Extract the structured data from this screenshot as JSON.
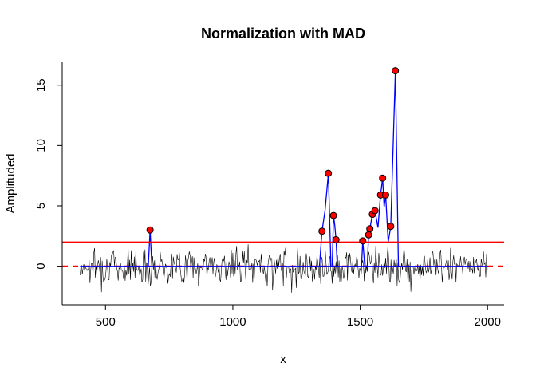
{
  "chart_data": {
    "type": "line",
    "title": "Normalization with MAD",
    "xlabel": "x",
    "ylabel": "Amplituded",
    "xlim": [
      330,
      2065
    ],
    "ylim": [
      -3.2,
      16.9
    ],
    "x_ticks": [
      500,
      1000,
      1500,
      2000
    ],
    "y_ticks": [
      0,
      5,
      10,
      15
    ],
    "grid": false,
    "colors": {
      "signal": "#000000",
      "peaks_line": "#0000ff",
      "threshold": "#ff0000",
      "baseline": "#ff0000",
      "peak_fill": "#ff0000",
      "peak_stroke": "#000000"
    },
    "threshold": 2,
    "baseline": 0,
    "noise": {
      "x_start": 400,
      "x_end": 2000,
      "step": 3,
      "seed": 7,
      "amplitude": 0.75
    },
    "peaks_x_range": [
      400,
      2000
    ],
    "peaks": [
      {
        "x": 675,
        "y": 3.0
      },
      {
        "x": 1350,
        "y": 2.9
      },
      {
        "x": 1375,
        "y": 7.7
      },
      {
        "x": 1395,
        "y": 4.2
      },
      {
        "x": 1405,
        "y": 2.2
      },
      {
        "x": 1510,
        "y": 2.1
      },
      {
        "x": 1533,
        "y": 2.6
      },
      {
        "x": 1538,
        "y": 3.1
      },
      {
        "x": 1548,
        "y": 4.3
      },
      {
        "x": 1558,
        "y": 4.6
      },
      {
        "x": 1580,
        "y": 5.9
      },
      {
        "x": 1588,
        "y": 7.3
      },
      {
        "x": 1600,
        "y": 5.9
      },
      {
        "x": 1620,
        "y": 3.3
      },
      {
        "x": 1638,
        "y": 16.2
      }
    ],
    "blue_segments": [
      [
        [
          668,
          0
        ],
        [
          675,
          3.0
        ],
        [
          682,
          0
        ]
      ],
      [
        [
          1340,
          0
        ],
        [
          1350,
          2.9
        ],
        [
          1362,
          4.6
        ],
        [
          1375,
          7.7
        ],
        [
          1385,
          0
        ]
      ],
      [
        [
          1390,
          0
        ],
        [
          1395,
          4.2
        ],
        [
          1400,
          3.4
        ],
        [
          1405,
          2.2
        ],
        [
          1410,
          0
        ]
      ],
      [
        [
          1505,
          0
        ],
        [
          1510,
          2.1
        ],
        [
          1518,
          0
        ]
      ],
      [
        [
          1528,
          0
        ],
        [
          1533,
          2.6
        ],
        [
          1538,
          3.1
        ],
        [
          1548,
          4.3
        ],
        [
          1558,
          4.6
        ],
        [
          1570,
          3.2
        ],
        [
          1580,
          5.9
        ],
        [
          1588,
          7.3
        ],
        [
          1594,
          4.9
        ],
        [
          1600,
          5.9
        ],
        [
          1610,
          2.0
        ],
        [
          1620,
          3.3
        ],
        [
          1638,
          16.2
        ],
        [
          1650,
          0
        ]
      ]
    ]
  }
}
